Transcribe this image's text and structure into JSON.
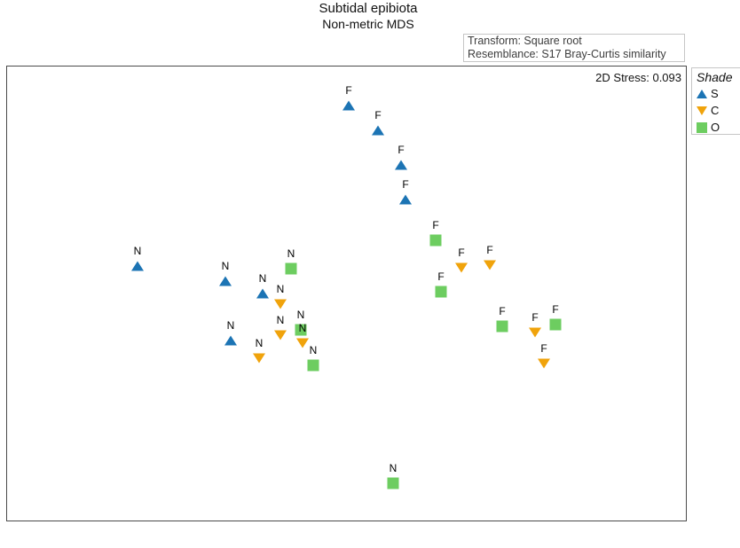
{
  "title": "Subtidal epibiota",
  "subtitle": "Non-metric MDS",
  "info_box": {
    "line1": "Transform: Square root",
    "line2": "Resemblance: S17 Bray-Curtis similarity"
  },
  "stress_label": "2D Stress: 0.093",
  "legend": {
    "title": "Shade",
    "items": [
      {
        "key": "S",
        "marker": "triangle-up",
        "color": "#1C74B4"
      },
      {
        "key": "C",
        "marker": "triangle-down",
        "color": "#F0A30B"
      },
      {
        "key": "O",
        "marker": "square",
        "color": "#6DCD60"
      }
    ]
  },
  "colors": {
    "shade_S": "#1C74B4",
    "shade_C": "#F0A30B",
    "shade_O": "#6DCD60",
    "frame_border": "#4A4A4A",
    "box_border": "#C6C6C6"
  },
  "chart_data": {
    "type": "scatter",
    "title": "Subtidal epibiota",
    "subtitle": "Non-metric MDS",
    "stress": 0.093,
    "axes": {
      "visible": false,
      "note": "unlabeled MDS ordination space; coordinates below are screen pixels"
    },
    "legend_position": "top-right-outside",
    "grid": false,
    "series": [
      {
        "name": "S",
        "marker": "triangle-up",
        "color": "#1C74B4",
        "points": [
          {
            "label": "F",
            "x": 393,
            "y": 119
          },
          {
            "label": "F",
            "x": 426,
            "y": 147
          },
          {
            "label": "F",
            "x": 452,
            "y": 186
          },
          {
            "label": "F",
            "x": 457,
            "y": 225
          },
          {
            "label": "N",
            "x": 155,
            "y": 300
          },
          {
            "label": "N",
            "x": 254,
            "y": 317
          },
          {
            "label": "N",
            "x": 296,
            "y": 331
          },
          {
            "label": "N",
            "x": 260,
            "y": 384
          }
        ]
      },
      {
        "name": "O",
        "marker": "square",
        "color": "#6DCD60",
        "points": [
          {
            "label": "F",
            "x": 491,
            "y": 271
          },
          {
            "label": "F",
            "x": 497,
            "y": 329
          },
          {
            "label": "F",
            "x": 566,
            "y": 368
          },
          {
            "label": "F",
            "x": 626,
            "y": 366
          },
          {
            "label": "N",
            "x": 328,
            "y": 303
          },
          {
            "label": "N",
            "x": 339,
            "y": 372
          },
          {
            "label": "N",
            "x": 353,
            "y": 412
          },
          {
            "label": "N",
            "x": 443,
            "y": 545
          }
        ]
      },
      {
        "name": "C",
        "marker": "triangle-down",
        "color": "#F0A30B",
        "points": [
          {
            "label": "F",
            "x": 520,
            "y": 302
          },
          {
            "label": "F",
            "x": 552,
            "y": 299
          },
          {
            "label": "F",
            "x": 603,
            "y": 375
          },
          {
            "label": "F",
            "x": 613,
            "y": 410
          },
          {
            "label": "N",
            "x": 316,
            "y": 343
          },
          {
            "label": "N",
            "x": 316,
            "y": 378
          },
          {
            "label": "N",
            "x": 341,
            "y": 387
          },
          {
            "label": "N",
            "x": 292,
            "y": 404
          }
        ]
      }
    ]
  }
}
